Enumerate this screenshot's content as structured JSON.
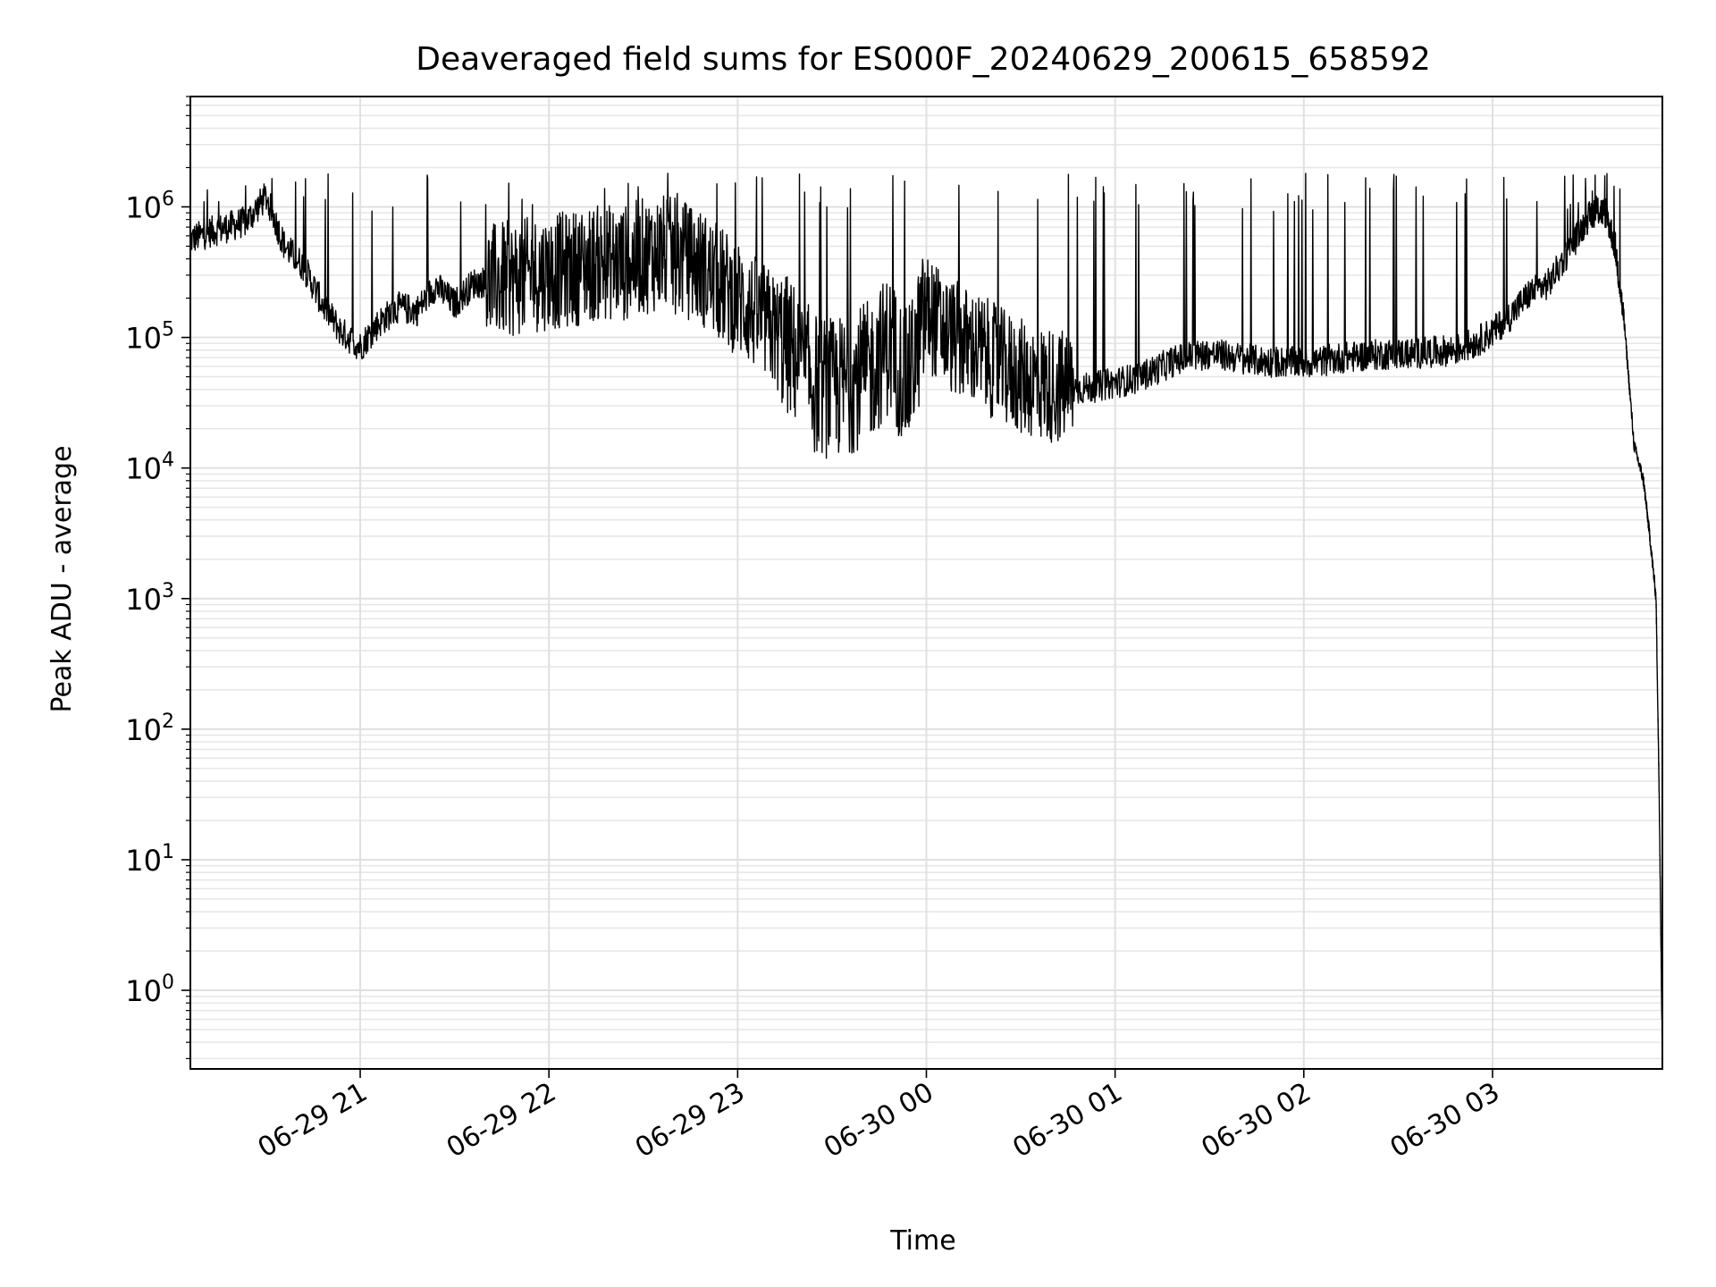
{
  "chart_data": {
    "type": "line",
    "title": "Deaveraged field sums for ES000F_20240629_200615_658592",
    "xlabel": "Time",
    "ylabel": "Peak ADU - average",
    "yscale": "log",
    "ylim": [
      0.25,
      7000000
    ],
    "xlim": [
      "2024-06-29 20:06",
      "2024-06-30 03:54"
    ],
    "grid": true,
    "x_ticks": [
      {
        "value": "2024-06-29 21:00",
        "label": "06-29 21"
      },
      {
        "value": "2024-06-29 22:00",
        "label": "06-29 22"
      },
      {
        "value": "2024-06-29 23:00",
        "label": "06-29 23"
      },
      {
        "value": "2024-06-30 00:00",
        "label": "06-30 00"
      },
      {
        "value": "2024-06-30 01:00",
        "label": "06-30 01"
      },
      {
        "value": "2024-06-30 02:00",
        "label": "06-30 02"
      },
      {
        "value": "2024-06-30 03:00",
        "label": "06-30 03"
      }
    ],
    "y_ticks": [
      {
        "value": 1,
        "base": "10",
        "exp": "0"
      },
      {
        "value": 10,
        "base": "10",
        "exp": "1"
      },
      {
        "value": 100,
        "base": "10",
        "exp": "2"
      },
      {
        "value": 1000,
        "base": "10",
        "exp": "3"
      },
      {
        "value": 10000,
        "base": "10",
        "exp": "4"
      },
      {
        "value": 100000,
        "base": "10",
        "exp": "5"
      },
      {
        "value": 1000000,
        "base": "10",
        "exp": "6"
      }
    ],
    "series": [
      {
        "color": "#000000",
        "x": [
          "2024-06-29 20:06",
          "2024-06-29 20:12",
          "2024-06-29 20:18",
          "2024-06-29 20:24",
          "2024-06-29 20:30",
          "2024-06-29 20:36",
          "2024-06-29 20:42",
          "2024-06-29 20:48",
          "2024-06-29 20:54",
          "2024-06-29 21:00",
          "2024-06-29 21:06",
          "2024-06-29 21:12",
          "2024-06-29 21:18",
          "2024-06-29 21:24",
          "2024-06-29 21:30",
          "2024-06-29 21:36",
          "2024-06-29 21:42",
          "2024-06-29 21:48",
          "2024-06-29 21:54",
          "2024-06-29 22:00",
          "2024-06-29 22:06",
          "2024-06-29 22:12",
          "2024-06-29 22:18",
          "2024-06-29 22:24",
          "2024-06-29 22:30",
          "2024-06-29 22:36",
          "2024-06-29 22:42",
          "2024-06-29 22:48",
          "2024-06-29 22:54",
          "2024-06-29 23:00",
          "2024-06-29 23:06",
          "2024-06-29 23:12",
          "2024-06-29 23:18",
          "2024-06-29 23:24",
          "2024-06-29 23:30",
          "2024-06-29 23:36",
          "2024-06-29 23:42",
          "2024-06-29 23:48",
          "2024-06-29 23:54",
          "2024-06-30 00:00",
          "2024-06-30 00:06",
          "2024-06-30 00:12",
          "2024-06-30 00:18",
          "2024-06-30 00:24",
          "2024-06-30 00:30",
          "2024-06-30 00:36",
          "2024-06-30 00:42",
          "2024-06-30 00:48",
          "2024-06-30 00:54",
          "2024-06-30 01:00",
          "2024-06-30 01:06",
          "2024-06-30 01:12",
          "2024-06-30 01:18",
          "2024-06-30 01:24",
          "2024-06-30 01:30",
          "2024-06-30 01:36",
          "2024-06-30 01:42",
          "2024-06-30 01:48",
          "2024-06-30 01:54",
          "2024-06-30 02:00",
          "2024-06-30 02:06",
          "2024-06-30 02:12",
          "2024-06-30 02:18",
          "2024-06-30 02:24",
          "2024-06-30 02:30",
          "2024-06-30 02:36",
          "2024-06-30 02:42",
          "2024-06-30 02:48",
          "2024-06-30 02:54",
          "2024-06-30 03:00",
          "2024-06-30 03:06",
          "2024-06-30 03:12",
          "2024-06-30 03:18",
          "2024-06-30 03:24",
          "2024-06-30 03:30",
          "2024-06-30 03:33",
          "2024-06-30 03:36",
          "2024-06-30 03:39",
          "2024-06-30 03:42",
          "2024-06-30 03:45",
          "2024-06-30 03:48",
          "2024-06-30 03:50",
          "2024-06-30 03:52",
          "2024-06-30 03:53",
          "2024-06-30 03:54"
        ],
        "y": [
          560000,
          640000,
          700000,
          780000,
          1200000,
          500000,
          350000,
          180000,
          110000,
          85000,
          130000,
          170000,
          160000,
          250000,
          180000,
          260000,
          270000,
          280000,
          300000,
          320000,
          330000,
          360000,
          380000,
          370000,
          420000,
          450000,
          400000,
          350000,
          260000,
          200000,
          150000,
          110000,
          75000,
          45000,
          40000,
          45000,
          55000,
          90000,
          45000,
          160000,
          110000,
          90000,
          75000,
          60000,
          50000,
          45000,
          42000,
          40000,
          42000,
          45000,
          48000,
          55000,
          65000,
          72000,
          75000,
          72000,
          68000,
          65000,
          65000,
          64000,
          66000,
          70000,
          72000,
          74000,
          75000,
          76000,
          78000,
          80000,
          90000,
          110000,
          150000,
          220000,
          260000,
          450000,
          800000,
          950000,
          900000,
          500000,
          120000,
          15000,
          8000,
          3000,
          1000,
          30,
          0.3
        ]
      }
    ],
    "spikes_note": ""
  }
}
